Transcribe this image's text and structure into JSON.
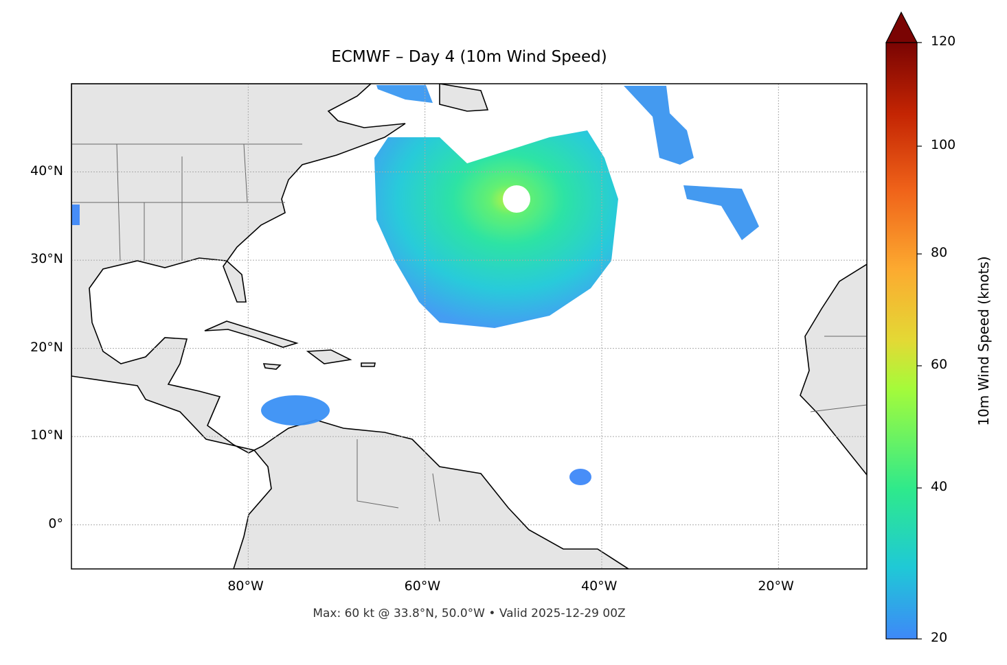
{
  "title": "ECMWF – Day 4 (10m Wind Speed)",
  "footer": "Max: 60 kt @ 33.8°N, 50.0°W • Valid 2025-12-29 00Z",
  "map": {
    "extent_lon": [
      -100,
      -10
    ],
    "extent_lat": [
      -5,
      50
    ],
    "land_color": "#e5e5e5",
    "gridlines": "dotted",
    "lon_ticks": [
      {
        "value": -80,
        "label": "80°W"
      },
      {
        "value": -60,
        "label": "60°W"
      },
      {
        "value": -40,
        "label": "40°W"
      },
      {
        "value": -20,
        "label": "20°W"
      }
    ],
    "lat_ticks": [
      {
        "value": 40,
        "label": "40°N"
      },
      {
        "value": 30,
        "label": "30°N"
      },
      {
        "value": 20,
        "label": "20°N"
      },
      {
        "value": 10,
        "label": "10°N"
      },
      {
        "value": 0,
        "label": "0°"
      }
    ]
  },
  "colorbar": {
    "label": "10m Wind Speed (knots)",
    "range": [
      20,
      120
    ],
    "extend": "max",
    "colormap": [
      "#3e88f8",
      "#1fc9d6",
      "#2ee98c",
      "#a5fb3a",
      "#e3d935",
      "#fcaa30",
      "#f0641a",
      "#c42503",
      "#7a0403"
    ],
    "ticks": [
      {
        "value": 20,
        "label": "20"
      },
      {
        "value": 40,
        "label": "40"
      },
      {
        "value": 60,
        "label": "60"
      },
      {
        "value": 80,
        "label": "80"
      },
      {
        "value": 100,
        "label": "100"
      },
      {
        "value": 120,
        "label": "120"
      }
    ]
  },
  "max_wind": {
    "value_kt": 60,
    "lat": 33.8,
    "lon": -50.0
  }
}
